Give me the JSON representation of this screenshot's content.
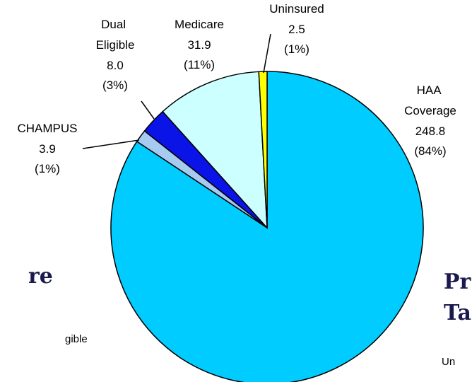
{
  "chart_data": {
    "type": "pie",
    "categories": [
      "HAA Coverage",
      "CHAMPUS",
      "Dual Eligible",
      "Medicare",
      "Uninsured"
    ],
    "values": [
      248.8,
      3.9,
      8.0,
      31.9,
      2.5
    ],
    "value_labels": [
      "248.8",
      "3.9",
      "8.0",
      "31.9",
      "2.5"
    ],
    "percent_labels": [
      "(84%)",
      "(1%)",
      "(3%)",
      "(11%)",
      "(1%)"
    ],
    "colors": [
      "#00ccff",
      "#a6caf0",
      "#0a14e6",
      "#ccffff",
      "#ffff00"
    ]
  },
  "fragments": [
    "re",
    "gible",
    "Pr",
    "Ta",
    "Un"
  ]
}
